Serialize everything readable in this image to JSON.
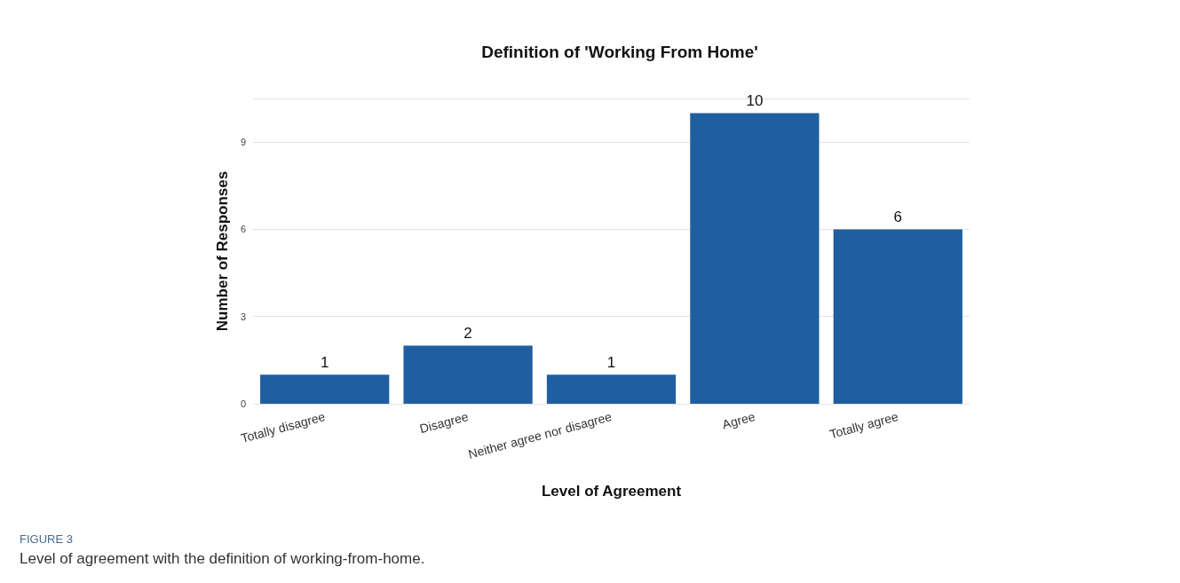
{
  "chart_data": {
    "type": "bar",
    "title": "Definition of 'Working From Home'",
    "xlabel": "Level of Agreement",
    "ylabel": "Number of Responses",
    "categories": [
      "Totally disagree",
      "Disagree",
      "Neither agree nor disagree",
      "Agree",
      "Totally agree"
    ],
    "values": [
      1,
      2,
      1,
      10,
      6
    ],
    "color": "#1f5fa0",
    "ylim": [
      0,
      10.5
    ],
    "yticks": [
      0,
      3,
      6,
      9
    ],
    "grid": "y",
    "data_labels": true,
    "annotations": [
      "FIGURE 3",
      "Level of agreement with the definition of working-from-home."
    ]
  }
}
